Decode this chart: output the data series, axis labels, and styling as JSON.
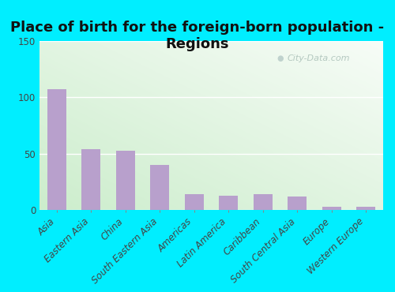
{
  "title": "Place of birth for the foreign-born population -\nRegions",
  "categories": [
    "Asia",
    "Eastern Asia",
    "China",
    "South Eastern Asia",
    "Americas",
    "Latin America",
    "Caribbean",
    "South Central Asia",
    "Europe",
    "Western Europe"
  ],
  "values": [
    107,
    54,
    53,
    40,
    14,
    13,
    14,
    12,
    3,
    3
  ],
  "bar_color": "#b8a0cc",
  "bg_outer": "#00eeff",
  "ylim": [
    0,
    150
  ],
  "yticks": [
    0,
    50,
    100,
    150
  ],
  "title_fontsize": 13,
  "tick_fontsize": 8.5,
  "watermark": "City-Data.com",
  "gradient_colors": [
    "#e8f5e4",
    "#f5fbf5",
    "#ffffff"
  ],
  "grid_color": "#ffffff"
}
